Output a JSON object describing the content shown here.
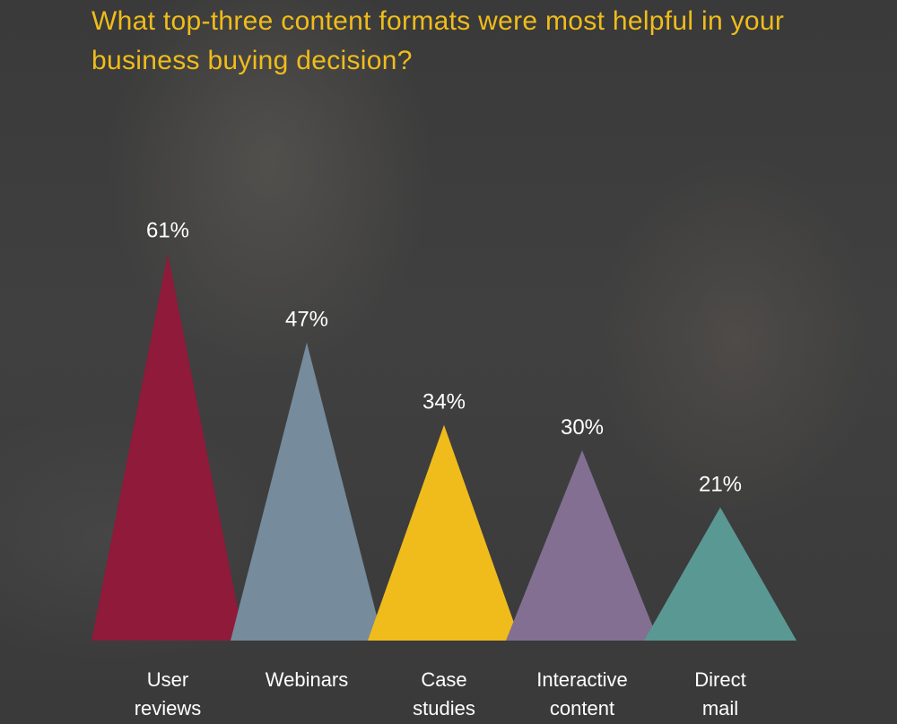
{
  "title": "What top-three content formats were most helpful in your business buying decision?",
  "chart_data": {
    "type": "bar",
    "title": "What top-three content formats were most helpful in your business buying decision?",
    "xlabel": "",
    "ylabel": "",
    "ylim": [
      0,
      100
    ],
    "grid": false,
    "categories": [
      [
        "User",
        "reviews"
      ],
      [
        "Webinars"
      ],
      [
        "Case",
        "studies"
      ],
      [
        "Interactive",
        "content"
      ],
      [
        "Direct",
        "mail"
      ]
    ],
    "values": [
      61,
      47,
      34,
      30,
      21
    ],
    "value_labels": [
      "61%",
      "47%",
      "34%",
      "30%",
      "21%"
    ],
    "colors": [
      "#8f1a3a",
      "#768b9c",
      "#efbc1c",
      "#836f92",
      "#5a9894"
    ]
  }
}
